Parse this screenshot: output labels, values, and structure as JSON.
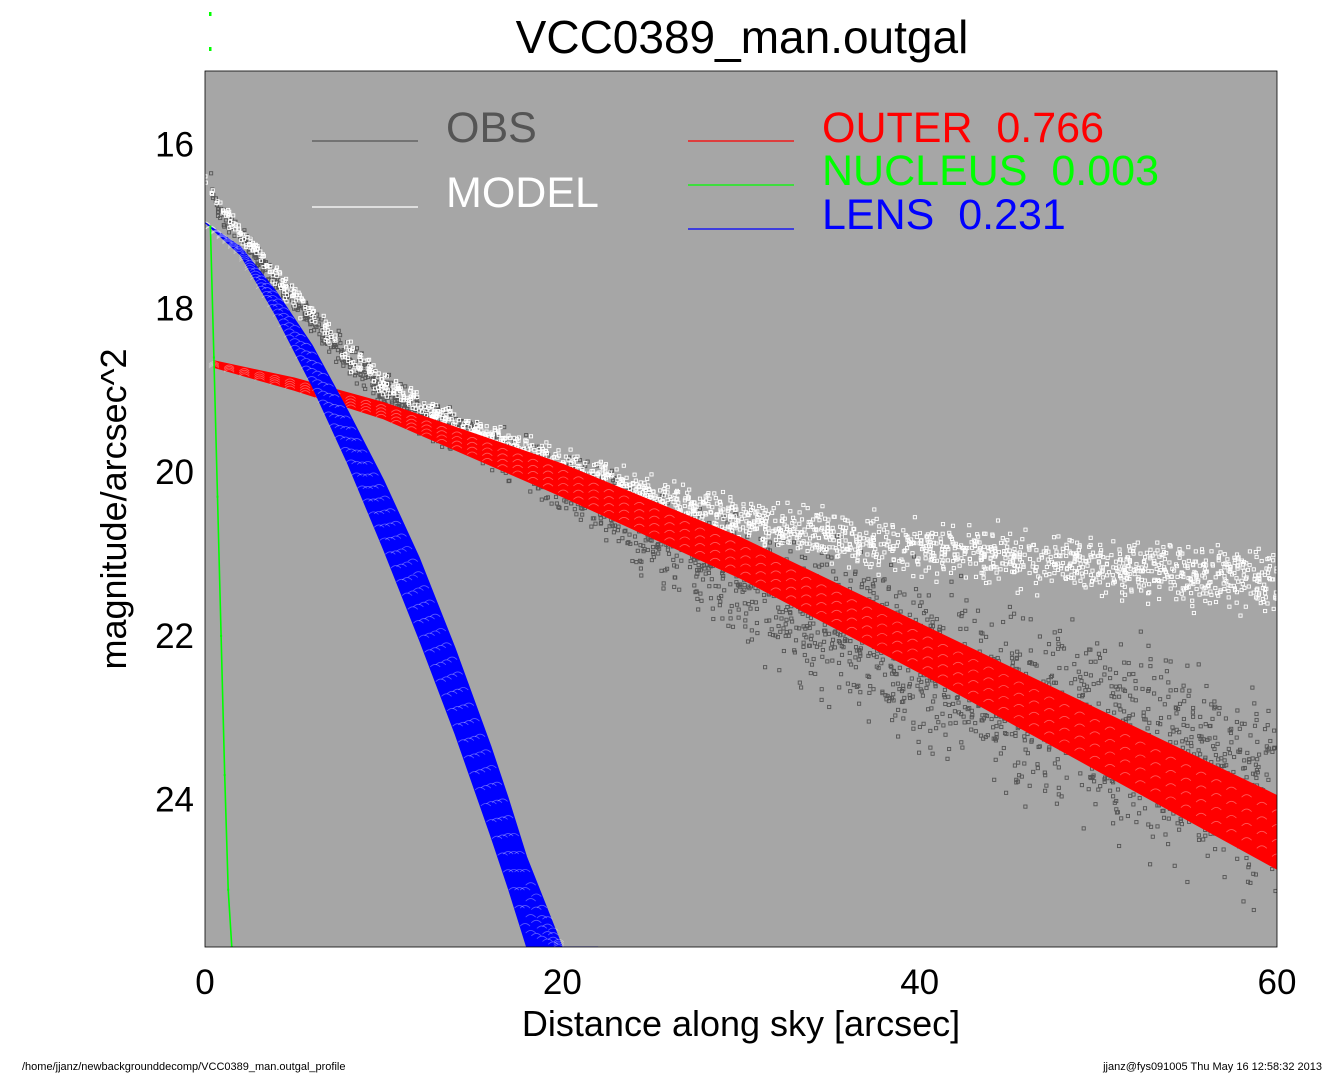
{
  "chart_data": {
    "type": "scatter",
    "title": "VCC0389_man.outgal",
    "xlabel": "Distance along sky [arcsec]",
    "ylabel": "magnitude/arcsec^2",
    "xlim": [
      0,
      60
    ],
    "ylim": [
      25.8,
      15.1
    ],
    "y_inverted": true,
    "x_ticks": [
      0,
      20,
      40,
      60
    ],
    "y_ticks": [
      16,
      18,
      20,
      22,
      24
    ],
    "background_color": "#a6a6a6",
    "grid": false,
    "legend": {
      "placement": "top",
      "entries": [
        {
          "label": "OBS",
          "value": "",
          "color": "#555555"
        },
        {
          "label": "MODEL",
          "value": "",
          "color": "#ffffff"
        },
        {
          "label": "OUTER",
          "value": "0.766",
          "color": "#ff0000"
        },
        {
          "label": "NUCLEUS",
          "value": "0.003",
          "color": "#00ff00"
        },
        {
          "label": "LENS",
          "value": "0.231",
          "color": "#0000ff"
        }
      ]
    },
    "series": [
      {
        "name": "OUTER",
        "color": "#ff0000",
        "kind": "band",
        "x": [
          0.5,
          5,
          10,
          20,
          30,
          40,
          50,
          60
        ],
        "y_upper": [
          18.64,
          18.85,
          19.15,
          19.9,
          20.8,
          21.85,
          22.9,
          23.95
        ],
        "y_lower": [
          18.72,
          19.0,
          19.35,
          20.3,
          21.3,
          22.45,
          23.65,
          24.85
        ]
      },
      {
        "name": "LENS",
        "color": "#0000ff",
        "kind": "band",
        "x": [
          0,
          2,
          4,
          6,
          8,
          10,
          12,
          14,
          16,
          17,
          18,
          20,
          22
        ],
        "y_upper": [
          16.95,
          17.25,
          17.8,
          18.45,
          19.25,
          20.1,
          21.05,
          22.15,
          23.35,
          24.0,
          24.7,
          25.8,
          25.8
        ],
        "y_lower": [
          16.95,
          17.35,
          18.1,
          18.95,
          19.9,
          20.95,
          22.05,
          23.2,
          24.45,
          25.1,
          25.8,
          25.8,
          25.8
        ]
      },
      {
        "name": "NUCLEUS",
        "color": "#00ff00",
        "kind": "line",
        "x": [
          0.3,
          0.5,
          0.7,
          0.9,
          1.1,
          1.3,
          1.5
        ],
        "y": [
          17.0,
          18.6,
          20.3,
          22.0,
          23.7,
          25.1,
          25.8
        ]
      },
      {
        "name": "OBS",
        "color": "#555555",
        "kind": "scatter",
        "x": [
          0.3,
          0.5,
          1,
          2,
          3,
          5,
          8,
          10,
          12,
          15,
          20,
          25,
          30,
          35,
          40,
          45,
          50,
          55,
          60
        ],
        "y_center": [
          16.3,
          16.7,
          16.9,
          17.1,
          17.4,
          17.9,
          18.6,
          19.0,
          19.3,
          19.6,
          20.1,
          20.7,
          21.3,
          21.8,
          22.3,
          22.8,
          23.2,
          23.6,
          24.0
        ],
        "y_spread": [
          0.15,
          0.15,
          0.2,
          0.2,
          0.2,
          0.25,
          0.3,
          0.3,
          0.35,
          0.4,
          0.5,
          0.8,
          1.1,
          1.3,
          1.5,
          1.6,
          1.7,
          1.8,
          1.9
        ]
      },
      {
        "name": "MODEL",
        "color": "#ffffff",
        "kind": "scatter",
        "x": [
          0,
          1,
          2,
          3,
          5,
          8,
          10,
          12,
          15,
          20,
          25,
          30,
          35,
          40,
          45,
          50,
          55,
          60
        ],
        "y_center": [
          16.4,
          16.8,
          17.1,
          17.35,
          17.85,
          18.55,
          18.9,
          19.2,
          19.5,
          19.9,
          20.3,
          20.6,
          20.8,
          20.95,
          21.05,
          21.15,
          21.25,
          21.35
        ],
        "y_spread": [
          0.1,
          0.12,
          0.15,
          0.18,
          0.22,
          0.25,
          0.25,
          0.25,
          0.25,
          0.3,
          0.35,
          0.4,
          0.45,
          0.5,
          0.5,
          0.5,
          0.55,
          0.6
        ]
      }
    ]
  },
  "footer": {
    "path": "/home/jjanz/newbackgrounddecomp/VCC0389_man.outgal_profile",
    "stamp": "jjanz@fys091005  Thu May 16 12:58:32 2013"
  }
}
